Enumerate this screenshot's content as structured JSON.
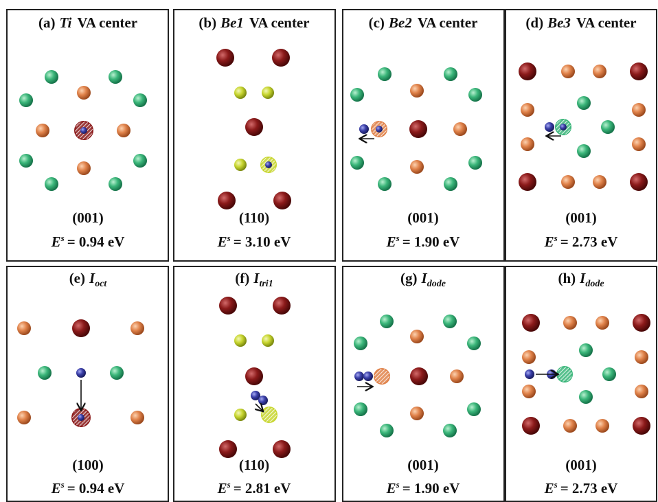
{
  "panels": [
    {
      "title": {
        "label": "(a)",
        "name": "Ti",
        "suffix": "VA center"
      },
      "plane": "(001)",
      "energy": {
        "symbol": "E",
        "sup": "s",
        "text": "= 0.94 eV"
      }
    },
    {
      "title": {
        "label": "(b)",
        "name": "Be1",
        "suffix": "VA center"
      },
      "plane": "(110)",
      "energy": {
        "symbol": "E",
        "sup": "s",
        "text": "= 3.10 eV"
      }
    },
    {
      "title": {
        "label": "(c)",
        "name": "Be2",
        "suffix": "VA center"
      },
      "plane": "(001)",
      "energy": {
        "symbol": "E",
        "sup": "s",
        "text": "= 1.90 eV"
      }
    },
    {
      "title": {
        "label": "(d)",
        "name": "Be3",
        "suffix": "VA center"
      },
      "plane": "(001)",
      "energy": {
        "symbol": "E",
        "sup": "s",
        "text": "= 2.73 eV"
      }
    },
    {
      "title": {
        "label": "(e)",
        "name": "I",
        "sub": "oct"
      },
      "plane": "(100)",
      "energy": {
        "symbol": "E",
        "sup": "s",
        "text": "= 0.94 eV"
      }
    },
    {
      "title": {
        "label": "(f)",
        "name": "I",
        "sub": "tri1"
      },
      "plane": "(110)",
      "energy": {
        "symbol": "E",
        "sup": "s",
        "text": "= 2.81 eV"
      }
    },
    {
      "title": {
        "label": "(g)",
        "name": "I",
        "sub": "dode"
      },
      "plane": "(001)",
      "energy": {
        "symbol": "E",
        "sup": "s",
        "text": "= 1.90 eV"
      }
    },
    {
      "title": {
        "label": "(h)",
        "name": "I",
        "sub": "dode"
      },
      "plane": "(001)",
      "energy": {
        "symbol": "E",
        "sup": "s",
        "text": "= 2.73 eV"
      }
    }
  ]
}
